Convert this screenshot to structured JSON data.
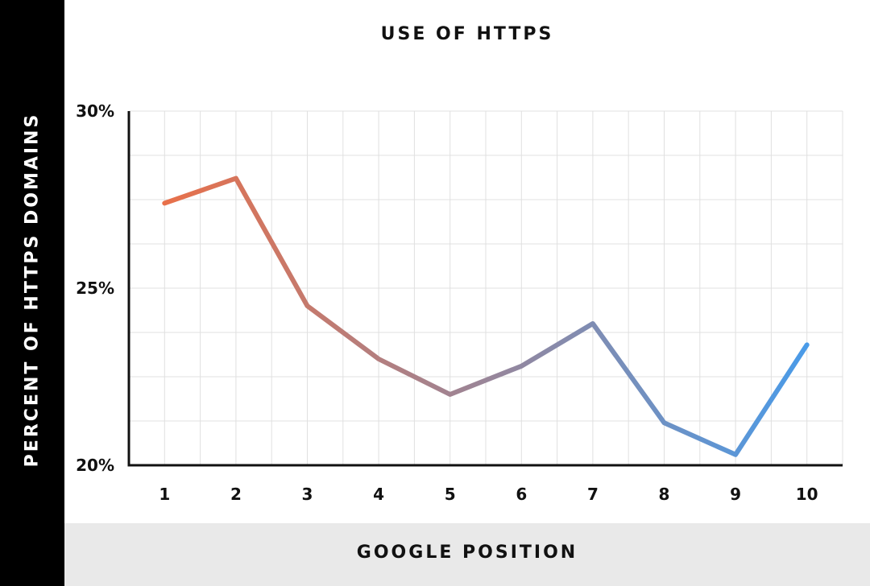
{
  "colors": {
    "line_start": "#e8704a",
    "line_end": "#4a9be8",
    "axis": "#111111",
    "grid": "#e0e0e0"
  },
  "chart_data": {
    "type": "line",
    "title": "USE OF HTTPS",
    "xlabel": "GOOGLE POSITION",
    "ylabel": "PERCENT OF HTTPS DOMAINS",
    "x": [
      1,
      2,
      3,
      4,
      5,
      6,
      7,
      8,
      9,
      10
    ],
    "ylim": [
      20,
      30
    ],
    "yticks": [
      "20%",
      "25%",
      "30%"
    ],
    "xticks": [
      "1",
      "2",
      "3",
      "4",
      "5",
      "6",
      "7",
      "8",
      "9",
      "10"
    ],
    "grid": true,
    "series": [
      {
        "values": [
          27.4,
          28.1,
          24.5,
          23.0,
          22.0,
          22.8,
          24.0,
          21.2,
          20.3,
          23.4
        ]
      }
    ]
  }
}
